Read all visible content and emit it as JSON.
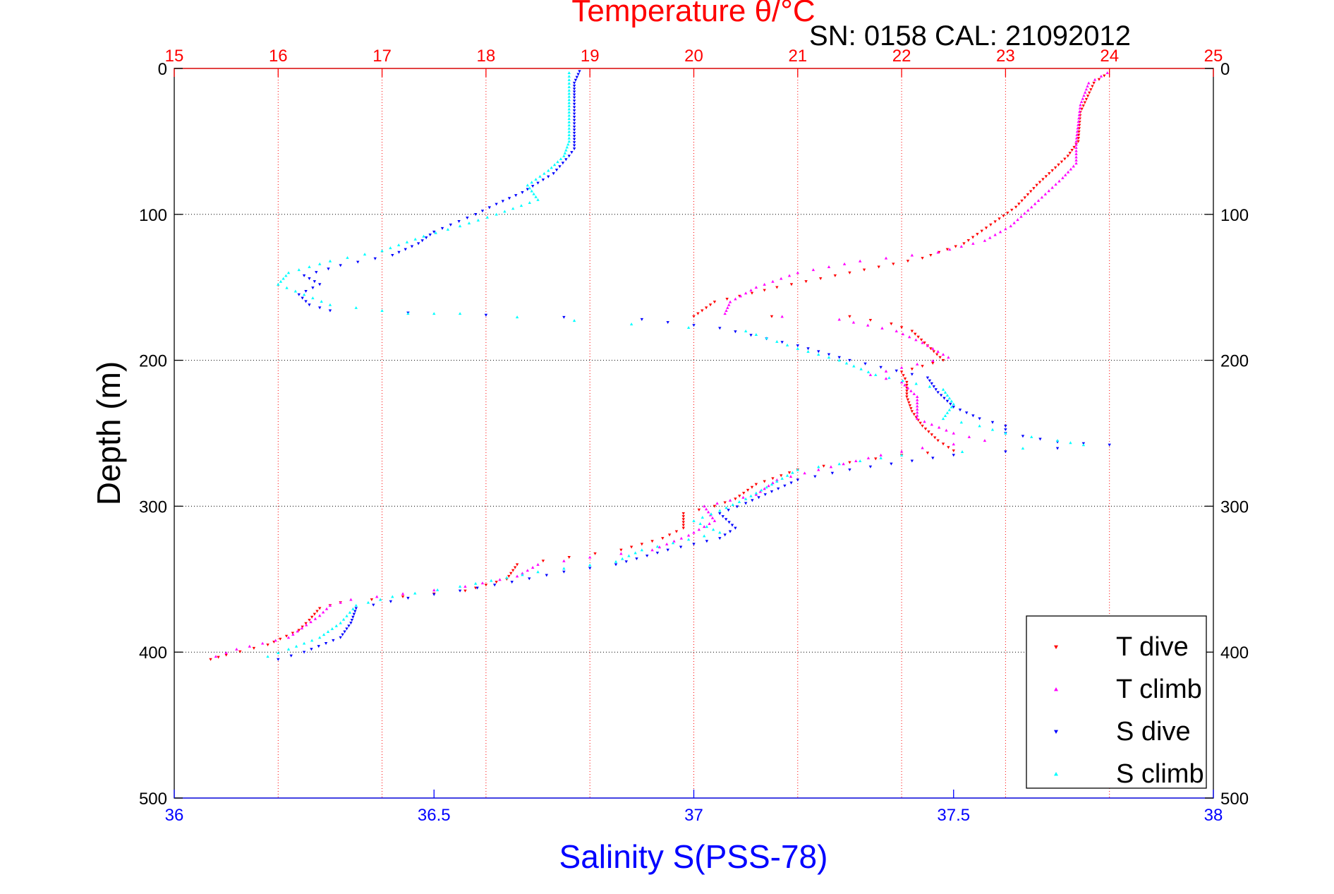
{
  "chart_data": {
    "type": "scatter",
    "title": "Temperature θ/°C",
    "subtitle": "SN: 0158  CAL: 21092012",
    "xlabel": "Salinity S(PSS-78)",
    "ylabel": "Depth (m)",
    "top_axis": {
      "label": "Temperature θ/°C",
      "range": [
        15,
        25
      ],
      "ticks": [
        "15",
        "16",
        "17",
        "18",
        "19",
        "20",
        "21",
        "22",
        "23",
        "24",
        "25"
      ]
    },
    "bottom_axis": {
      "label": "Salinity S(PSS-78)",
      "range": [
        36,
        38
      ],
      "ticks": [
        "36",
        "36.5",
        "37",
        "37.5",
        "38"
      ]
    },
    "y_axis": {
      "label": "Depth (m)",
      "range": [
        0,
        500
      ],
      "inverted": true,
      "ticks": [
        "0",
        "100",
        "200",
        "300",
        "400",
        "500"
      ]
    },
    "grid": true,
    "legend_position": "bottom-right",
    "series": [
      {
        "name": "T dive",
        "axis": "temperature",
        "color": "#ff0000",
        "marker": "triangle-down",
        "points": [
          [
            23.95,
            5
          ],
          [
            23.85,
            10
          ],
          [
            23.72,
            30
          ],
          [
            23.7,
            50
          ],
          [
            23.6,
            60
          ],
          [
            23.45,
            70
          ],
          [
            23.3,
            80
          ],
          [
            23.1,
            95
          ],
          [
            22.9,
            105
          ],
          [
            22.6,
            120
          ],
          [
            22.2,
            130
          ],
          [
            21.5,
            140
          ],
          [
            20.8,
            150
          ],
          [
            20.2,
            160
          ],
          [
            20.0,
            170
          ],
          [
            21.5,
            170
          ],
          [
            21.9,
            175
          ],
          [
            22.1,
            180
          ],
          [
            22.25,
            190
          ],
          [
            22.4,
            200
          ],
          [
            22.0,
            208
          ],
          [
            22.05,
            215
          ],
          [
            22.05,
            225
          ],
          [
            22.1,
            235
          ],
          [
            22.2,
            245
          ],
          [
            22.35,
            255
          ],
          [
            22.5,
            262
          ],
          [
            22.0,
            265
          ],
          [
            21.5,
            270
          ],
          [
            21.0,
            275
          ],
          [
            20.6,
            285
          ],
          [
            20.4,
            295
          ],
          [
            20.2,
            300
          ],
          [
            19.9,
            305
          ],
          [
            19.9,
            315
          ],
          [
            19.7,
            322
          ],
          [
            19.3,
            330
          ],
          [
            18.8,
            335
          ],
          [
            18.3,
            340
          ],
          [
            18.2,
            350
          ],
          [
            17.8,
            358
          ],
          [
            17.2,
            362
          ],
          [
            16.6,
            366
          ],
          [
            16.4,
            370
          ],
          [
            16.3,
            378
          ],
          [
            16.2,
            385
          ],
          [
            15.9,
            395
          ],
          [
            15.5,
            402
          ],
          [
            15.35,
            405
          ]
        ]
      },
      {
        "name": "T climb",
        "axis": "temperature",
        "color": "#ff00ff",
        "marker": "triangle-up",
        "points": [
          [
            23.98,
            3
          ],
          [
            23.8,
            10
          ],
          [
            23.72,
            25
          ],
          [
            23.68,
            50
          ],
          [
            23.68,
            65
          ],
          [
            23.55,
            75
          ],
          [
            23.25,
            95
          ],
          [
            23.05,
            108
          ],
          [
            22.8,
            118
          ],
          [
            22.35,
            126
          ],
          [
            21.6,
            132
          ],
          [
            21.0,
            140
          ],
          [
            20.6,
            150
          ],
          [
            20.35,
            160
          ],
          [
            20.3,
            168
          ],
          [
            21.4,
            172
          ],
          [
            21.95,
            180
          ],
          [
            22.2,
            188
          ],
          [
            22.45,
            198
          ],
          [
            22.0,
            205
          ],
          [
            21.7,
            210
          ],
          [
            22.0,
            215
          ],
          [
            22.15,
            225
          ],
          [
            22.15,
            240
          ],
          [
            22.5,
            250
          ],
          [
            22.8,
            255
          ],
          [
            22.2,
            260
          ],
          [
            21.8,
            265
          ],
          [
            21.2,
            275
          ],
          [
            20.8,
            282
          ],
          [
            20.6,
            292
          ],
          [
            20.1,
            300
          ],
          [
            20.2,
            310
          ],
          [
            19.95,
            320
          ],
          [
            19.6,
            330
          ],
          [
            19.0,
            335
          ],
          [
            18.5,
            340
          ],
          [
            18.3,
            348
          ],
          [
            17.8,
            355
          ],
          [
            17.2,
            360
          ],
          [
            16.7,
            364
          ],
          [
            16.5,
            368
          ],
          [
            16.4,
            375
          ],
          [
            16.1,
            390
          ],
          [
            15.6,
            398
          ],
          [
            15.4,
            403
          ]
        ]
      },
      {
        "name": "S dive",
        "axis": "salinity",
        "color": "#0000ff",
        "marker": "triangle-down",
        "points": [
          [
            36.78,
            2
          ],
          [
            36.77,
            10
          ],
          [
            36.77,
            20
          ],
          [
            36.77,
            40
          ],
          [
            36.77,
            55
          ],
          [
            36.76,
            60
          ],
          [
            36.73,
            72
          ],
          [
            36.67,
            85
          ],
          [
            36.62,
            93
          ],
          [
            36.58,
            100
          ],
          [
            36.5,
            112
          ],
          [
            36.47,
            120
          ],
          [
            36.42,
            128
          ],
          [
            36.32,
            135
          ],
          [
            36.25,
            142
          ],
          [
            36.28,
            148
          ],
          [
            36.24,
            155
          ],
          [
            36.26,
            162
          ],
          [
            36.3,
            166
          ],
          [
            36.6,
            169
          ],
          [
            36.9,
            172
          ],
          [
            37.05,
            178
          ],
          [
            37.2,
            190
          ],
          [
            37.3,
            200
          ],
          [
            37.45,
            212
          ],
          [
            37.47,
            222
          ],
          [
            37.5,
            232
          ],
          [
            37.55,
            240
          ],
          [
            37.6,
            245
          ],
          [
            37.6,
            250
          ],
          [
            37.7,
            256
          ],
          [
            37.8,
            258
          ],
          [
            37.5,
            265
          ],
          [
            37.3,
            275
          ],
          [
            37.2,
            282
          ],
          [
            37.15,
            290
          ],
          [
            37.1,
            298
          ],
          [
            37.05,
            305
          ],
          [
            37.08,
            315
          ],
          [
            37.05,
            322
          ],
          [
            36.95,
            330
          ],
          [
            36.85,
            340
          ],
          [
            36.75,
            345
          ],
          [
            36.65,
            352
          ],
          [
            36.55,
            358
          ],
          [
            36.45,
            363
          ],
          [
            36.35,
            370
          ],
          [
            36.34,
            380
          ],
          [
            36.32,
            390
          ],
          [
            36.25,
            400
          ],
          [
            36.2,
            405
          ]
        ]
      },
      {
        "name": "S climb",
        "axis": "salinity",
        "color": "#00ffff",
        "marker": "triangle-up",
        "points": [
          [
            36.76,
            3
          ],
          [
            36.76,
            15
          ],
          [
            36.76,
            30
          ],
          [
            36.76,
            50
          ],
          [
            36.75,
            60
          ],
          [
            36.72,
            70
          ],
          [
            36.68,
            80
          ],
          [
            36.7,
            90
          ],
          [
            36.62,
            100
          ],
          [
            36.55,
            108
          ],
          [
            36.48,
            115
          ],
          [
            36.4,
            125
          ],
          [
            36.3,
            132
          ],
          [
            36.22,
            140
          ],
          [
            36.2,
            148
          ],
          [
            36.25,
            155
          ],
          [
            36.3,
            162
          ],
          [
            36.45,
            168
          ],
          [
            36.55,
            168
          ],
          [
            37.1,
            180
          ],
          [
            37.2,
            192
          ],
          [
            37.28,
            200
          ],
          [
            37.35,
            210
          ],
          [
            37.48,
            220
          ],
          [
            37.5,
            230
          ],
          [
            37.48,
            240
          ],
          [
            37.55,
            245
          ],
          [
            37.6,
            250
          ],
          [
            37.7,
            255
          ],
          [
            37.75,
            258
          ],
          [
            37.4,
            265
          ],
          [
            37.2,
            275
          ],
          [
            37.15,
            285
          ],
          [
            37.1,
            295
          ],
          [
            37.05,
            303
          ],
          [
            37.0,
            310
          ],
          [
            37.05,
            318
          ],
          [
            36.9,
            330
          ],
          [
            36.85,
            338
          ],
          [
            36.7,
            345
          ],
          [
            36.55,
            355
          ],
          [
            36.42,
            362
          ],
          [
            36.35,
            368
          ],
          [
            36.32,
            380
          ],
          [
            36.28,
            390
          ],
          [
            36.22,
            398
          ],
          [
            36.18,
            403
          ]
        ]
      }
    ]
  }
}
